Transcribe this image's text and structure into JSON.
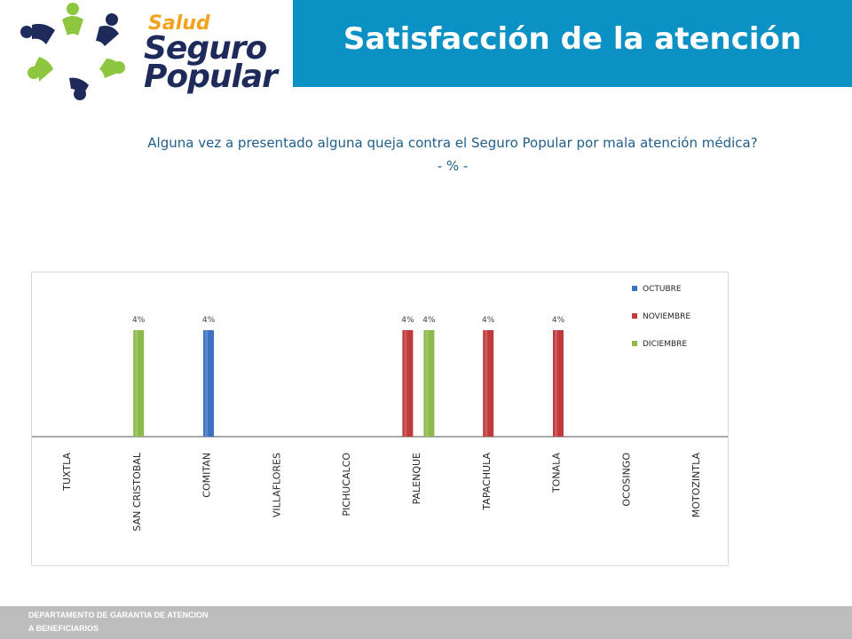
{
  "header": {
    "title": "Satisfacción de la atención",
    "logo": {
      "line1": "Salud",
      "line2": "Seguro",
      "line3": "Popular"
    }
  },
  "question": {
    "line1": "Alguna vez a presentado alguna queja contra el Seguro Popular por mala atención médica?",
    "line2": "- % -"
  },
  "colors": {
    "band": "#0c91c5",
    "octubre": "#3b73c0",
    "noviembre": "#c0393b",
    "diciembre": "#8db84a"
  },
  "chart_data": {
    "type": "bar",
    "title": "",
    "xlabel": "",
    "ylabel": "%",
    "ylim": [
      0,
      5
    ],
    "categories": [
      "TUXTLA",
      "SAN CRISTOBAL",
      "COMITAN",
      "VILLAFLORES",
      "PICHUCALCO",
      "PALENQUE",
      "TAPACHULA",
      "TONALA",
      "OCOSINGO",
      "MOTOZINTLA"
    ],
    "series": [
      {
        "name": "OCTUBRE",
        "color": "#3b73c0",
        "values": [
          null,
          null,
          4,
          null,
          null,
          null,
          null,
          null,
          null,
          null
        ]
      },
      {
        "name": "NOVIEMBRE",
        "color": "#c0393b",
        "values": [
          null,
          null,
          null,
          null,
          null,
          4,
          4,
          4,
          null,
          null
        ]
      },
      {
        "name": "DICIEMBRE",
        "color": "#8db84a",
        "values": [
          null,
          4,
          null,
          null,
          null,
          4,
          null,
          null,
          null,
          null
        ]
      }
    ],
    "data_label_suffix": "%",
    "legend_position": "top-right"
  },
  "footer": {
    "line1": "DEPARTAMENTO  DE GARANTIA DE ATENCION",
    "line2": "A BENEFICIARIOS"
  }
}
